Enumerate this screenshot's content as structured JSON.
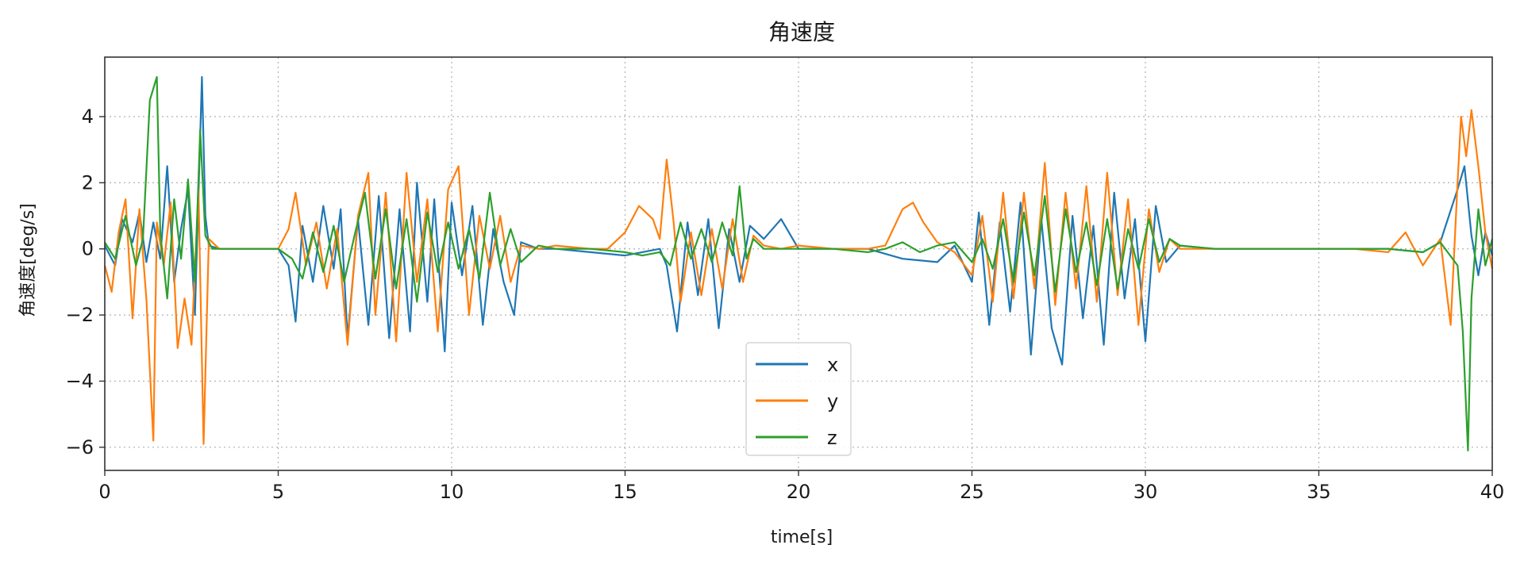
{
  "chart_data": {
    "type": "line",
    "title": "角速度",
    "xlabel": "time[s]",
    "ylabel": "角速度[deg/s]",
    "xlim": [
      0,
      40
    ],
    "ylim": [
      -6.7,
      5.8
    ],
    "xticks": [
      0,
      5,
      10,
      15,
      20,
      25,
      30,
      35,
      40
    ],
    "yticks": [
      -6,
      -4,
      -2,
      0,
      2,
      4
    ],
    "ytick_labels": [
      "−6",
      "−4",
      "−2",
      "0",
      "2",
      "4"
    ],
    "grid": true,
    "grid_style": "dotted",
    "legend_position": "bottom-center",
    "series": [
      {
        "name": "x",
        "color": "#1f77b4",
        "x": [
          0,
          0.3,
          0.5,
          0.8,
          1.0,
          1.2,
          1.4,
          1.6,
          1.8,
          2.0,
          2.2,
          2.4,
          2.6,
          2.8,
          2.9,
          3.0,
          3.3,
          4.0,
          5.0,
          5.3,
          5.5,
          5.7,
          6.0,
          6.3,
          6.6,
          6.8,
          7.0,
          7.3,
          7.6,
          7.9,
          8.2,
          8.5,
          8.8,
          9.0,
          9.3,
          9.5,
          9.8,
          10.0,
          10.3,
          10.6,
          10.9,
          11.2,
          11.5,
          11.8,
          12.0,
          12.5,
          13.0,
          14.0,
          15.0,
          16.0,
          16.2,
          16.5,
          16.8,
          17.1,
          17.4,
          17.7,
          18.0,
          18.3,
          18.6,
          19.0,
          19.5,
          20.0,
          21.0,
          22.0,
          23.0,
          24.0,
          24.5,
          25.0,
          25.2,
          25.5,
          25.8,
          26.1,
          26.4,
          26.7,
          27.0,
          27.3,
          27.6,
          27.9,
          28.2,
          28.5,
          28.8,
          29.1,
          29.4,
          29.7,
          30.0,
          30.3,
          30.6,
          31.0,
          32.0,
          33.0,
          34.0,
          35.0,
          36.0,
          37.0,
          38.0,
          38.5,
          39.0,
          39.2,
          39.4,
          39.6,
          39.8,
          40.0
        ],
        "y": [
          0.1,
          -0.5,
          0.9,
          0.2,
          1.1,
          -0.4,
          0.8,
          -0.3,
          2.5,
          -1.0,
          0.6,
          1.8,
          -2.0,
          5.2,
          1.0,
          0.1,
          0.0,
          0.0,
          0.0,
          -0.5,
          -2.2,
          0.7,
          -1.0,
          1.3,
          -0.6,
          1.2,
          -2.7,
          0.9,
          -2.3,
          1.6,
          -2.7,
          1.2,
          -2.5,
          2.0,
          -1.6,
          1.5,
          -3.1,
          1.4,
          -0.8,
          1.3,
          -2.3,
          0.6,
          -1.0,
          -2.0,
          0.2,
          0.0,
          0.0,
          -0.1,
          -0.2,
          0.0,
          -0.5,
          -2.5,
          0.8,
          -1.4,
          0.9,
          -2.4,
          0.6,
          -1.0,
          0.7,
          0.3,
          0.9,
          0.0,
          0.0,
          0.0,
          -0.3,
          -0.4,
          0.1,
          -1.0,
          1.1,
          -2.3,
          0.8,
          -1.9,
          1.4,
          -3.2,
          0.9,
          -2.4,
          -3.5,
          1.0,
          -2.1,
          0.7,
          -2.9,
          1.7,
          -1.5,
          0.9,
          -2.8,
          1.3,
          -0.4,
          0.1,
          0.0,
          0.0,
          0.0,
          0.0,
          0.0,
          0.0,
          -0.1,
          0.2,
          1.8,
          2.5,
          0.4,
          -0.8,
          0.5,
          -0.2
        ]
      },
      {
        "name": "y",
        "color": "#ff7f0e",
        "x": [
          0,
          0.2,
          0.4,
          0.6,
          0.8,
          1.0,
          1.2,
          1.4,
          1.5,
          1.7,
          1.9,
          2.1,
          2.3,
          2.5,
          2.7,
          2.85,
          3.0,
          3.3,
          4.0,
          5.0,
          5.3,
          5.5,
          5.8,
          6.1,
          6.4,
          6.7,
          7.0,
          7.3,
          7.6,
          7.8,
          8.1,
          8.4,
          8.7,
          9.0,
          9.3,
          9.6,
          9.9,
          10.2,
          10.5,
          10.8,
          11.1,
          11.4,
          11.7,
          12.0,
          12.5,
          13.0,
          14.0,
          14.5,
          15.0,
          15.4,
          15.8,
          16.0,
          16.2,
          16.4,
          16.6,
          16.9,
          17.2,
          17.5,
          17.8,
          18.1,
          18.4,
          18.7,
          19.0,
          19.5,
          20.0,
          21.0,
          22.0,
          22.5,
          23.0,
          23.3,
          23.6,
          24.0,
          24.5,
          25.0,
          25.3,
          25.6,
          25.9,
          26.2,
          26.5,
          26.8,
          27.1,
          27.4,
          27.7,
          28.0,
          28.3,
          28.6,
          28.9,
          29.2,
          29.5,
          29.8,
          30.1,
          30.4,
          30.7,
          31.0,
          32.0,
          33.0,
          34.0,
          35.0,
          36.0,
          37.0,
          37.5,
          38.0,
          38.5,
          38.8,
          39.0,
          39.1,
          39.25,
          39.4,
          39.6,
          39.8,
          40.0
        ],
        "y": [
          -0.5,
          -1.3,
          0.5,
          1.5,
          -2.1,
          1.2,
          -1.5,
          -5.8,
          0.8,
          -0.5,
          1.4,
          -3.0,
          -1.5,
          -2.9,
          1.8,
          -5.9,
          0.3,
          0.0,
          0.0,
          0.0,
          0.6,
          1.7,
          -0.5,
          0.8,
          -1.2,
          0.6,
          -2.9,
          1.0,
          2.3,
          -2.0,
          1.7,
          -2.8,
          2.3,
          -1.0,
          1.5,
          -2.5,
          1.8,
          2.5,
          -2.0,
          1.0,
          -0.6,
          1.0,
          -1.0,
          0.1,
          0.0,
          0.1,
          0.0,
          0.0,
          0.5,
          1.3,
          0.9,
          0.3,
          2.7,
          0.8,
          -1.6,
          0.5,
          -1.4,
          0.6,
          -1.2,
          0.9,
          -1.0,
          0.4,
          0.1,
          0.0,
          0.1,
          0.0,
          0.0,
          0.1,
          1.2,
          1.4,
          0.8,
          0.2,
          -0.1,
          -0.8,
          1.0,
          -1.6,
          1.7,
          -1.5,
          1.7,
          -1.2,
          2.6,
          -1.7,
          1.7,
          -1.2,
          1.9,
          -1.6,
          2.3,
          -1.4,
          1.5,
          -2.3,
          1.2,
          -0.7,
          0.3,
          0.0,
          0.0,
          0.0,
          0.0,
          0.0,
          0.0,
          -0.1,
          0.5,
          -0.5,
          0.3,
          -2.3,
          2.0,
          4.0,
          2.8,
          4.2,
          2.5,
          0.5,
          -0.6
        ]
      },
      {
        "name": "z",
        "color": "#2ca02c",
        "x": [
          0,
          0.3,
          0.6,
          0.9,
          1.1,
          1.3,
          1.5,
          1.6,
          1.8,
          2.0,
          2.2,
          2.4,
          2.6,
          2.75,
          2.9,
          3.1,
          3.5,
          4.0,
          5.0,
          5.4,
          5.7,
          6.0,
          6.3,
          6.6,
          6.9,
          7.2,
          7.5,
          7.8,
          8.1,
          8.4,
          8.7,
          9.0,
          9.3,
          9.6,
          9.9,
          10.2,
          10.5,
          10.8,
          11.1,
          11.4,
          11.7,
          12.0,
          12.5,
          13.0,
          14.0,
          15.0,
          15.5,
          16.0,
          16.3,
          16.6,
          16.9,
          17.2,
          17.5,
          17.8,
          18.1,
          18.3,
          18.5,
          18.7,
          19.0,
          19.5,
          20.0,
          21.0,
          22.0,
          22.5,
          23.0,
          23.5,
          24.0,
          24.5,
          25.0,
          25.3,
          25.6,
          25.9,
          26.2,
          26.5,
          26.8,
          27.1,
          27.4,
          27.7,
          28.0,
          28.3,
          28.6,
          28.9,
          29.2,
          29.5,
          29.8,
          30.1,
          30.4,
          30.7,
          31.0,
          32.0,
          33.0,
          34.0,
          35.0,
          36.0,
          37.0,
          38.0,
          38.5,
          39.0,
          39.15,
          39.3,
          39.4,
          39.6,
          39.8,
          40.0
        ],
        "y": [
          0.2,
          -0.3,
          1.0,
          -0.5,
          0.3,
          4.5,
          5.2,
          0.5,
          -1.5,
          1.5,
          -0.3,
          2.1,
          -1.0,
          3.6,
          0.4,
          0.0,
          0.0,
          0.0,
          0.0,
          -0.3,
          -0.9,
          0.5,
          -0.7,
          0.7,
          -1.0,
          0.4,
          1.7,
          -0.9,
          1.2,
          -1.2,
          0.9,
          -1.6,
          1.1,
          -0.7,
          0.8,
          -0.6,
          0.6,
          -0.9,
          1.7,
          -0.5,
          0.6,
          -0.4,
          0.1,
          0.0,
          0.0,
          -0.1,
          -0.2,
          -0.1,
          -0.5,
          0.8,
          -0.3,
          0.6,
          -0.4,
          0.8,
          -0.2,
          1.9,
          -0.3,
          0.3,
          0.0,
          0.0,
          0.0,
          0.0,
          -0.1,
          0.0,
          0.2,
          -0.1,
          0.1,
          0.2,
          -0.4,
          0.3,
          -0.6,
          0.9,
          -1.0,
          1.1,
          -0.8,
          1.6,
          -1.3,
          1.2,
          -0.7,
          0.8,
          -1.1,
          0.9,
          -1.2,
          0.6,
          -0.6,
          0.9,
          -0.4,
          0.3,
          0.1,
          0.0,
          0.0,
          0.0,
          0.0,
          0.0,
          0.0,
          -0.1,
          0.2,
          -0.5,
          -2.5,
          -6.1,
          -1.5,
          1.2,
          -0.5,
          0.3
        ]
      }
    ]
  }
}
